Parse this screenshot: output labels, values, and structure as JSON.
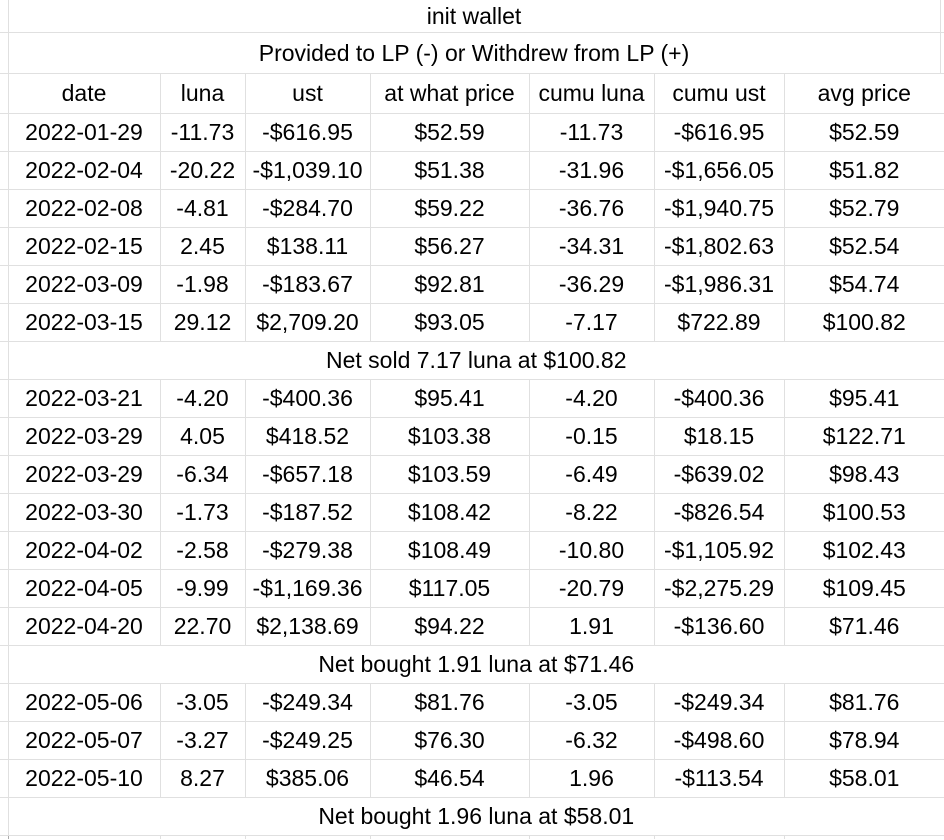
{
  "sheet": {
    "title": "init wallet",
    "subtitle": "Provided to LP (-) or Withdrew from LP (+)",
    "columns": [
      "date",
      "luna",
      "ust",
      "at what price",
      "cumu luna",
      "cumu ust",
      "avg price"
    ],
    "rows": [
      {
        "type": "data",
        "cells": [
          "2022-01-29",
          "-11.73",
          "-$616.95",
          "$52.59",
          "-11.73",
          "-$616.95",
          "$52.59"
        ]
      },
      {
        "type": "data",
        "cells": [
          "2022-02-04",
          "-20.22",
          "-$1,039.10",
          "$51.38",
          "-31.96",
          "-$1,656.05",
          "$51.82"
        ]
      },
      {
        "type": "data",
        "cells": [
          "2022-02-08",
          "-4.81",
          "-$284.70",
          "$59.22",
          "-36.76",
          "-$1,940.75",
          "$52.79"
        ]
      },
      {
        "type": "data",
        "cells": [
          "2022-02-15",
          "2.45",
          "$138.11",
          "$56.27",
          "-34.31",
          "-$1,802.63",
          "$52.54"
        ]
      },
      {
        "type": "data",
        "cells": [
          "2022-03-09",
          "-1.98",
          "-$183.67",
          "$92.81",
          "-36.29",
          "-$1,986.31",
          "$54.74"
        ]
      },
      {
        "type": "data",
        "cells": [
          "2022-03-15",
          "29.12",
          "$2,709.20",
          "$93.05",
          "-7.17",
          "$722.89",
          "$100.82"
        ]
      },
      {
        "type": "summary",
        "text": "Net sold 7.17 luna at $100.82"
      },
      {
        "type": "data",
        "cells": [
          "2022-03-21",
          "-4.20",
          "-$400.36",
          "$95.41",
          "-4.20",
          "-$400.36",
          "$95.41"
        ]
      },
      {
        "type": "data",
        "cells": [
          "2022-03-29",
          "4.05",
          "$418.52",
          "$103.38",
          "-0.15",
          "$18.15",
          "$122.71"
        ]
      },
      {
        "type": "data",
        "cells": [
          "2022-03-29",
          "-6.34",
          "-$657.18",
          "$103.59",
          "-6.49",
          "-$639.02",
          "$98.43"
        ]
      },
      {
        "type": "data",
        "cells": [
          "2022-03-30",
          "-1.73",
          "-$187.52",
          "$108.42",
          "-8.22",
          "-$826.54",
          "$100.53"
        ]
      },
      {
        "type": "data",
        "cells": [
          "2022-04-02",
          "-2.58",
          "-$279.38",
          "$108.49",
          "-10.80",
          "-$1,105.92",
          "$102.43"
        ]
      },
      {
        "type": "data",
        "cells": [
          "2022-04-05",
          "-9.99",
          "-$1,169.36",
          "$117.05",
          "-20.79",
          "-$2,275.29",
          "$109.45"
        ]
      },
      {
        "type": "data",
        "cells": [
          "2022-04-20",
          "22.70",
          "$2,138.69",
          "$94.22",
          "1.91",
          "-$136.60",
          "$71.46"
        ]
      },
      {
        "type": "summary",
        "text": "Net bought 1.91 luna at $71.46"
      },
      {
        "type": "data",
        "cells": [
          "2022-05-06",
          "-3.05",
          "-$249.34",
          "$81.76",
          "-3.05",
          "-$249.34",
          "$81.76"
        ]
      },
      {
        "type": "data",
        "cells": [
          "2022-05-07",
          "-3.27",
          "-$249.25",
          "$76.30",
          "-6.32",
          "-$498.60",
          "$78.94"
        ]
      },
      {
        "type": "data",
        "cells": [
          "2022-05-10",
          "8.27",
          "$385.06",
          "$46.54",
          "1.96",
          "-$113.54",
          "$58.01"
        ]
      },
      {
        "type": "summary",
        "text": "Net bought 1.96 luna at $58.01"
      }
    ],
    "colors": {
      "gridline": "#e0e0e0",
      "partial_row_border": "#ababab",
      "text": "#000000",
      "background": "#ffffff"
    }
  }
}
